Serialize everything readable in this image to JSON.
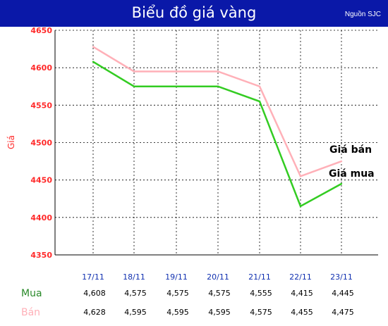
{
  "header": {
    "title": "Biểu đồ giá vàng",
    "source": "Nguồn SJC"
  },
  "chart_data": {
    "type": "line",
    "title": "Biểu đồ giá vàng",
    "ylabel": "Giá",
    "xlabel": "",
    "categories": [
      "17/11",
      "18/11",
      "19/11",
      "20/11",
      "21/11",
      "22/11",
      "23/11"
    ],
    "ylim": [
      4350,
      4650
    ],
    "yticks": [
      4350,
      4400,
      4450,
      4500,
      4550,
      4600,
      4650
    ],
    "grid": true,
    "series": [
      {
        "name": "Giá bán",
        "row_label": "Bán",
        "color": "#ffb0b8",
        "values": [
          4628,
          4595,
          4595,
          4595,
          4575,
          4455,
          4475
        ]
      },
      {
        "name": "Giá mua",
        "row_label": "Mua",
        "color": "#33cc22",
        "values": [
          4608,
          4575,
          4575,
          4575,
          4555,
          4415,
          4445
        ]
      }
    ],
    "table": {
      "rows": [
        {
          "label": "Mua",
          "color": "#2a8a2a",
          "cells": [
            "4,608",
            "4,575",
            "4,575",
            "4,575",
            "4,555",
            "4,415",
            "4,445"
          ]
        },
        {
          "label": "Bán",
          "color": "#ffb0b8",
          "cells": [
            "4,628",
            "4,595",
            "4,595",
            "4,595",
            "4,575",
            "4,455",
            "4,475"
          ]
        }
      ]
    }
  }
}
